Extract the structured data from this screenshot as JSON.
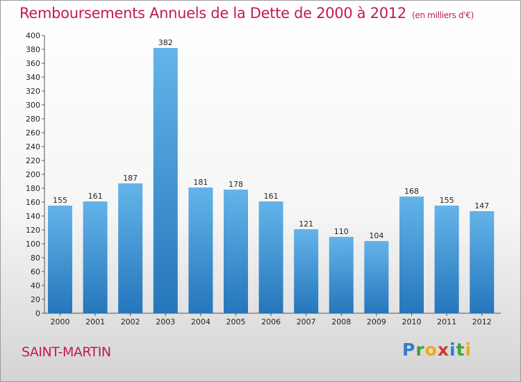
{
  "title": "Remboursements Annuels de la Dette de 2000 à 2012",
  "unit": "(en milliers d'€)",
  "commune": "SAINT-MARTIN",
  "logo": [
    "P",
    "r",
    "o",
    "x",
    "i",
    "t",
    "i"
  ],
  "colors": {
    "title": "#c2185b",
    "bar_top": "#64b4ea",
    "bar_bottom": "#2576bb"
  },
  "chart_data": {
    "type": "bar",
    "categories": [
      "2000",
      "2001",
      "2002",
      "2003",
      "2004",
      "2005",
      "2006",
      "2007",
      "2008",
      "2009",
      "2010",
      "2011",
      "2012"
    ],
    "values": [
      155,
      161,
      187,
      382,
      181,
      178,
      161,
      121,
      110,
      104,
      168,
      155,
      147
    ],
    "title": "Remboursements Annuels de la Dette de 2000 à 2012",
    "ylim": [
      0,
      400
    ],
    "ytick_step": 20,
    "grid": false,
    "data_labels": true
  }
}
